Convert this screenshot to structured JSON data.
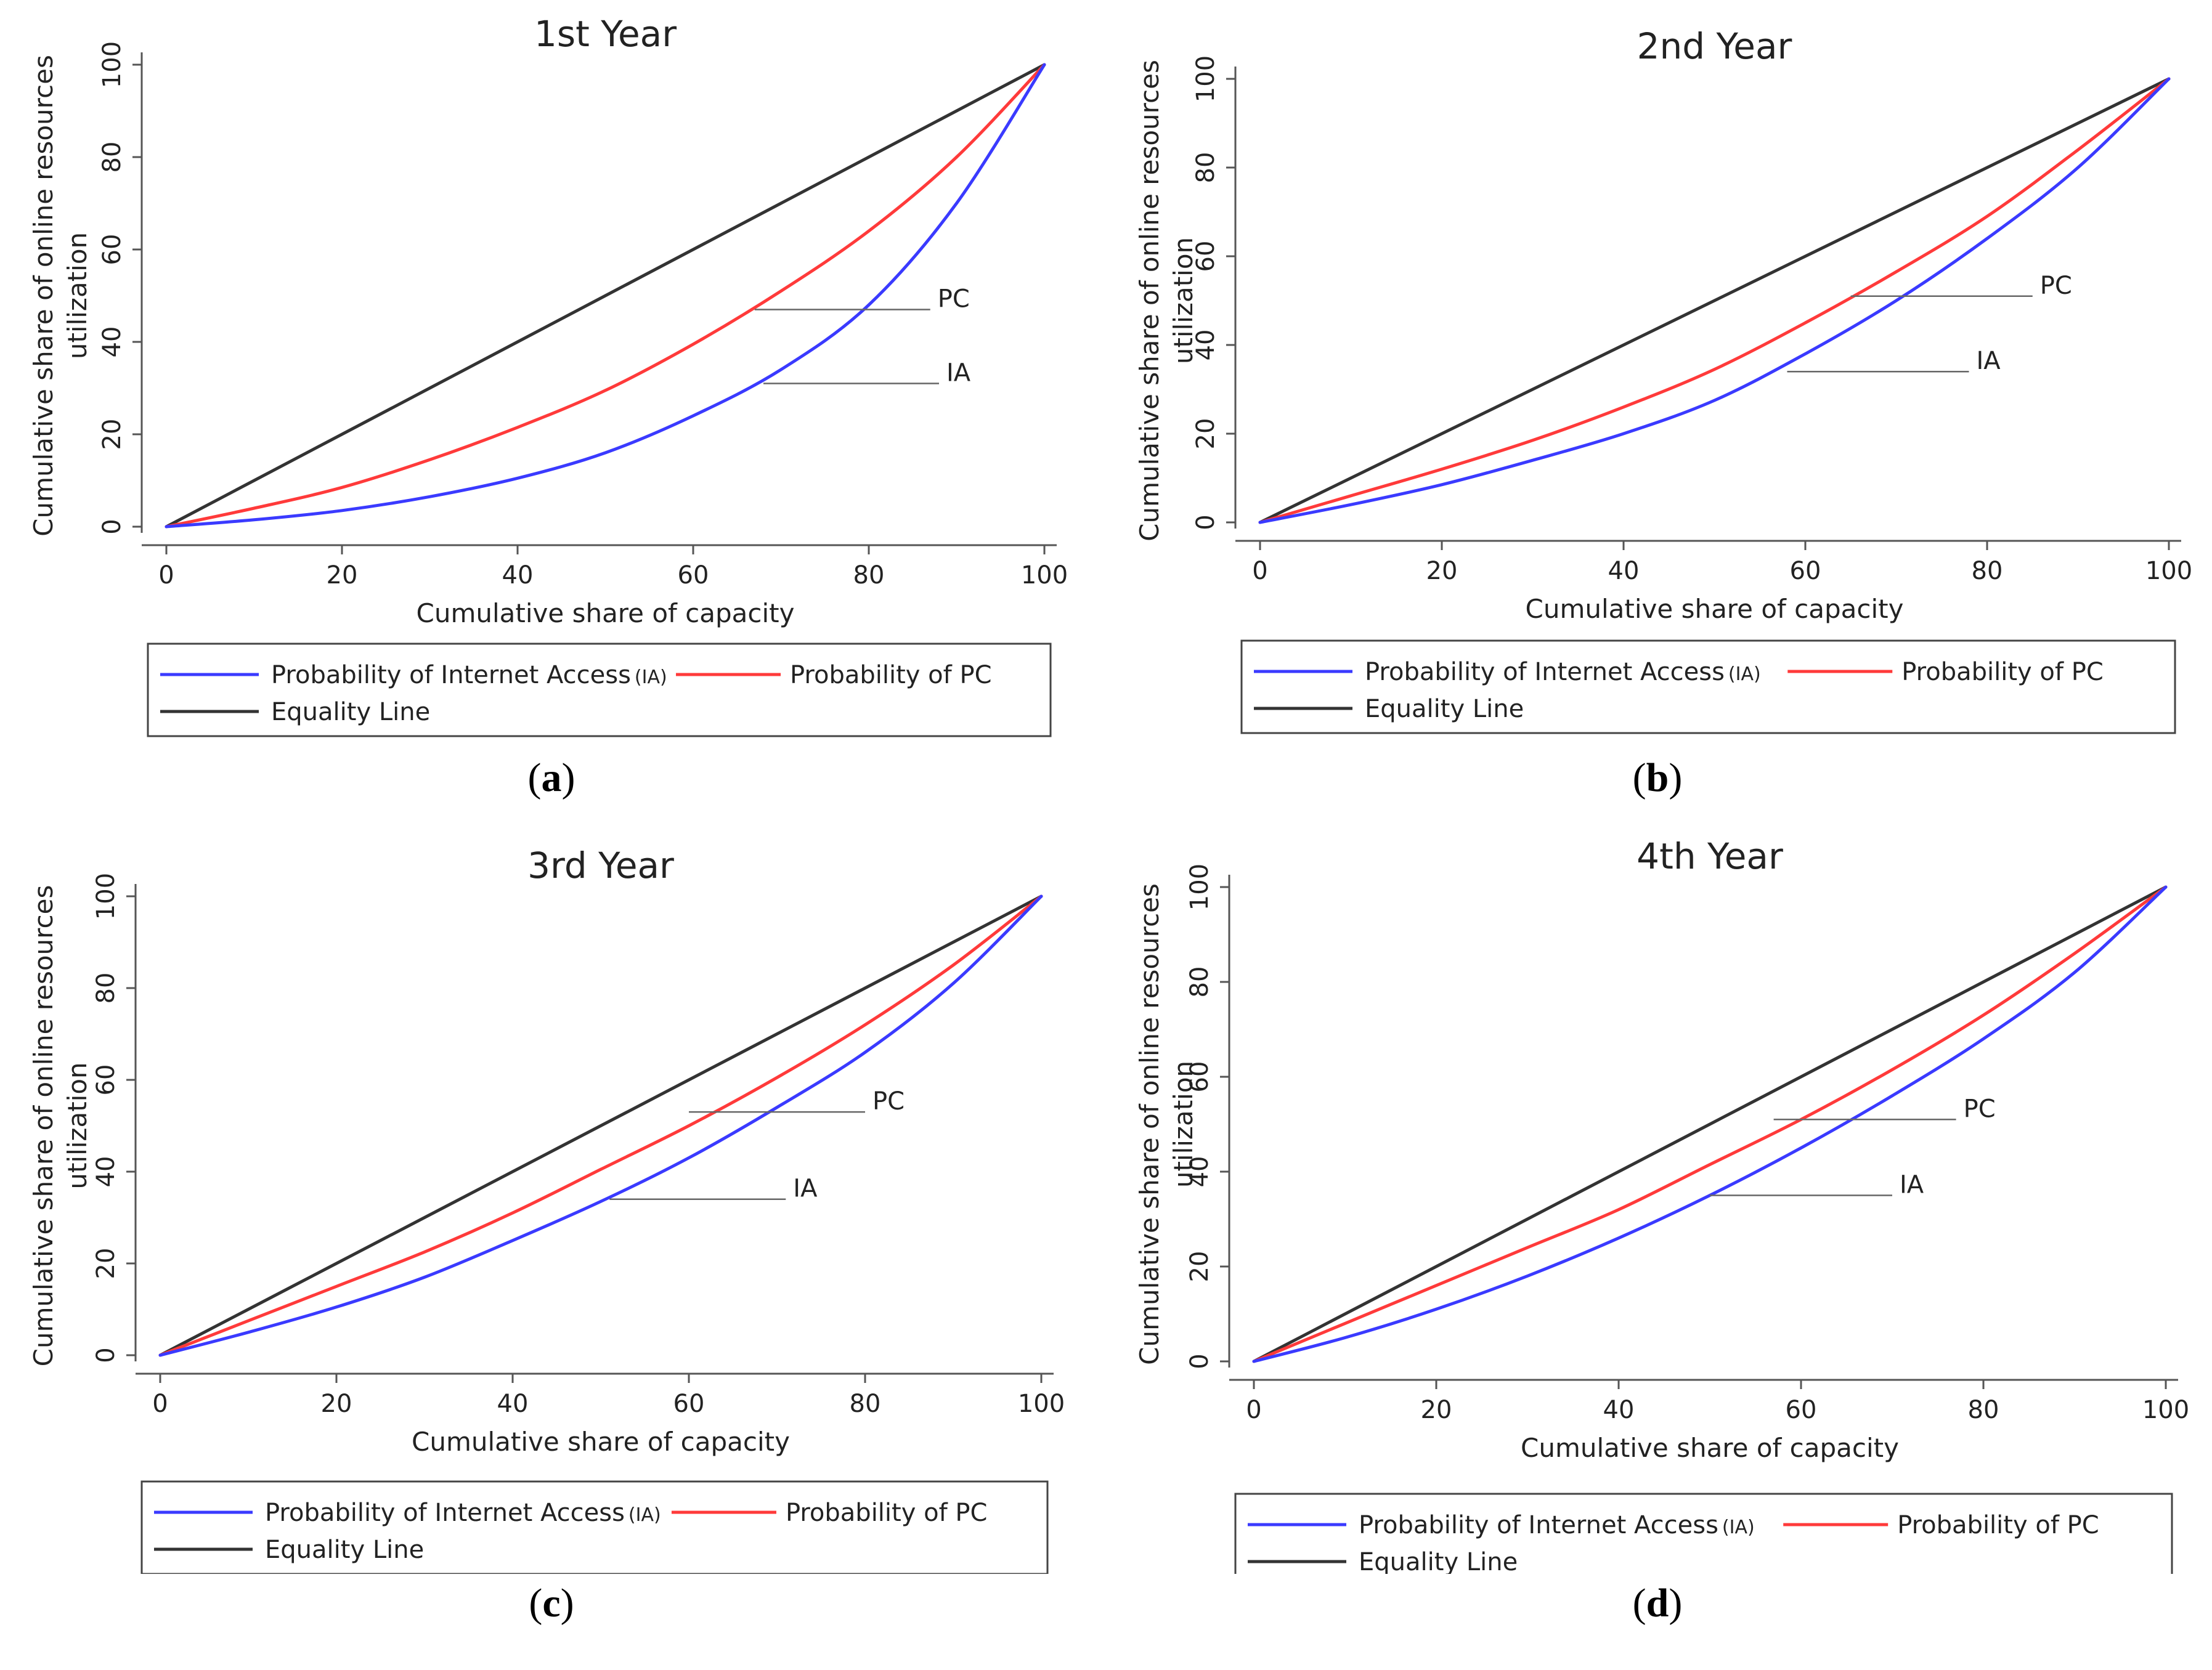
{
  "figure": {
    "panel_labels": [
      "a",
      "b",
      "c",
      "d"
    ],
    "colors": {
      "ia": "#3a3aff",
      "pc": "#ff3a3a",
      "equality": "#333333",
      "axis": "#555555"
    }
  },
  "chart_data": [
    {
      "type": "line",
      "title": "1st Year",
      "xlabel": "Cumulative share of capacity",
      "ylabel_line1": "Cumulative share of online resources",
      "ylabel_line2": "utilization",
      "xlim": [
        0,
        100
      ],
      "ylim": [
        0,
        100
      ],
      "xticks": [
        "0",
        "20",
        "40",
        "60",
        "80",
        "100"
      ],
      "yticks": [
        "0",
        "20",
        "40",
        "60",
        "80",
        "100"
      ],
      "x": [
        0,
        10,
        20,
        30,
        40,
        50,
        60,
        70,
        80,
        90,
        100
      ],
      "series": [
        {
          "key": "ia",
          "name": "Probability of Internet Access",
          "name_suffix": "(IA)",
          "values": [
            0,
            1.5,
            3.5,
            6.5,
            10.5,
            16,
            24,
            34,
            48,
            70,
            100
          ]
        },
        {
          "key": "pc",
          "name": "Probability of PC",
          "values": [
            0,
            4,
            8.5,
            14.5,
            21.5,
            29.5,
            39.5,
            51,
            64,
            80,
            100
          ]
        },
        {
          "key": "equality",
          "name": "Equality Line",
          "values": [
            0,
            10,
            20,
            30,
            40,
            50,
            60,
            70,
            80,
            90,
            100
          ]
        }
      ],
      "annotations": [
        {
          "text": "PC",
          "x": 67,
          "y": 47
        },
        {
          "text": "IA",
          "x": 68,
          "y": 31
        }
      ]
    },
    {
      "type": "line",
      "title": "2nd Year",
      "xlabel": "Cumulative share of capacity",
      "ylabel_line1": "Cumulative share of online resources",
      "ylabel_line2": "utilization",
      "xlim": [
        0,
        100
      ],
      "ylim": [
        0,
        100
      ],
      "xticks": [
        "0",
        "20",
        "40",
        "60",
        "80",
        "100"
      ],
      "yticks": [
        "0",
        "20",
        "40",
        "60",
        "80",
        "100"
      ],
      "x": [
        0,
        10,
        20,
        30,
        40,
        50,
        60,
        70,
        80,
        90,
        100
      ],
      "series": [
        {
          "key": "ia",
          "name": "Probability of Internet Access",
          "name_suffix": "(IA)",
          "values": [
            0,
            4,
            8.5,
            14,
            20,
            27.5,
            38,
            50,
            64,
            80,
            100
          ]
        },
        {
          "key": "pc",
          "name": "Probability of PC",
          "values": [
            0,
            6,
            12,
            18.5,
            26,
            34.5,
            45,
            56.5,
            69,
            84,
            100
          ]
        },
        {
          "key": "equality",
          "name": "Equality Line",
          "values": [
            0,
            10,
            20,
            30,
            40,
            50,
            60,
            70,
            80,
            90,
            100
          ]
        }
      ],
      "annotations": [
        {
          "text": "PC",
          "x": 65,
          "y": 51
        },
        {
          "text": "IA",
          "x": 58,
          "y": 34
        }
      ]
    },
    {
      "type": "line",
      "title": "3rd Year",
      "xlabel": "Cumulative share of capacity",
      "ylabel_line1": "Cumulative share of online resources",
      "ylabel_line2": "utilization",
      "xlim": [
        0,
        100
      ],
      "ylim": [
        0,
        100
      ],
      "xticks": [
        "0",
        "20",
        "40",
        "60",
        "80",
        "100"
      ],
      "yticks": [
        "0",
        "20",
        "40",
        "60",
        "80",
        "100"
      ],
      "x": [
        0,
        10,
        20,
        30,
        40,
        50,
        60,
        70,
        80,
        90,
        100
      ],
      "series": [
        {
          "key": "ia",
          "name": "Probability of Internet Access",
          "name_suffix": "(IA)",
          "values": [
            0,
            5,
            10.5,
            17,
            25,
            33.5,
            43,
            54,
            66,
            81,
            100
          ]
        },
        {
          "key": "pc",
          "name": "Probability of PC",
          "values": [
            0,
            7.5,
            15,
            22.5,
            31,
            40.5,
            50,
            60.5,
            72,
            85,
            100
          ]
        },
        {
          "key": "equality",
          "name": "Equality Line",
          "values": [
            0,
            10,
            20,
            30,
            40,
            50,
            60,
            70,
            80,
            90,
            100
          ]
        }
      ],
      "annotations": [
        {
          "text": "PC",
          "x": 60,
          "y": 53
        },
        {
          "text": "IA",
          "x": 51,
          "y": 34
        }
      ]
    },
    {
      "type": "line",
      "title": "4th Year",
      "xlabel": "Cumulative share of capacity",
      "ylabel_line1": "Cumulative share of online resources",
      "ylabel_line2": "utilization",
      "xlim": [
        0,
        100
      ],
      "ylim": [
        0,
        100
      ],
      "xticks": [
        "0",
        "20",
        "40",
        "60",
        "80",
        "100"
      ],
      "yticks": [
        "0",
        "20",
        "40",
        "60",
        "80",
        "100"
      ],
      "x": [
        0,
        10,
        20,
        30,
        40,
        50,
        60,
        70,
        80,
        90,
        100
      ],
      "series": [
        {
          "key": "ia",
          "name": "Probability of Internet Access",
          "name_suffix": "(IA)",
          "values": [
            0,
            5,
            11,
            18,
            26,
            35,
            45,
            56,
            68,
            82,
            100
          ]
        },
        {
          "key": "pc",
          "name": "Probability of PC",
          "values": [
            0,
            8,
            16,
            24,
            32,
            41.5,
            51,
            61.5,
            73,
            86,
            100
          ]
        },
        {
          "key": "equality",
          "name": "Equality Line",
          "values": [
            0,
            10,
            20,
            30,
            40,
            50,
            60,
            70,
            80,
            90,
            100
          ]
        }
      ],
      "annotations": [
        {
          "text": "PC",
          "x": 57,
          "y": 51
        },
        {
          "text": "IA",
          "x": 50,
          "y": 35
        }
      ]
    }
  ]
}
